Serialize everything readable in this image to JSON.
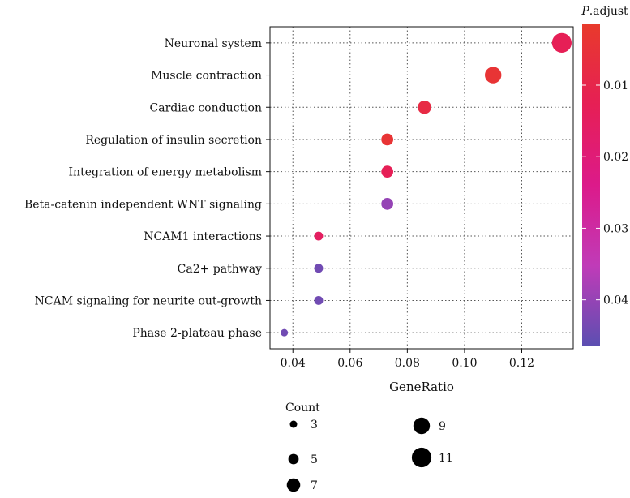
{
  "chart_data": {
    "type": "scatter",
    "xlabel": "GeneRatio",
    "ylabel": "",
    "xlim": [
      0.032,
      0.138
    ],
    "x_ticks": [
      "0.04",
      "0.06",
      "0.08",
      "0.10",
      "0.12"
    ],
    "x_tick_values": [
      0.04,
      0.06,
      0.08,
      0.1,
      0.12
    ],
    "grid": true,
    "categories": [
      "Neuronal system",
      "Muscle contraction",
      "Cardiac conduction",
      "Regulation of insulin secretion",
      "Integration of energy metabolism",
      "Beta-catenin independent WNT signaling",
      "NCAM1 interactions",
      "Ca2+ pathway",
      "NCAM signaling for neurite out-growth",
      "Phase 2-plateau phase"
    ],
    "points": [
      {
        "term": "Neuronal system",
        "gene_ratio": 0.134,
        "count": 11,
        "p_adjust": 0.013
      },
      {
        "term": "Muscle contraction",
        "gene_ratio": 0.11,
        "count": 9,
        "p_adjust": 0.004
      },
      {
        "term": "Cardiac conduction",
        "gene_ratio": 0.086,
        "count": 7,
        "p_adjust": 0.008
      },
      {
        "term": "Regulation of insulin secretion",
        "gene_ratio": 0.073,
        "count": 6,
        "p_adjust": 0.004
      },
      {
        "term": "Integration of energy metabolism",
        "gene_ratio": 0.073,
        "count": 6,
        "p_adjust": 0.013
      },
      {
        "term": "Beta-catenin independent WNT signaling",
        "gene_ratio": 0.073,
        "count": 6,
        "p_adjust": 0.04
      },
      {
        "term": "NCAM1 interactions",
        "gene_ratio": 0.049,
        "count": 4,
        "p_adjust": 0.015
      },
      {
        "term": "Ca2+ pathway",
        "gene_ratio": 0.049,
        "count": 4,
        "p_adjust": 0.044
      },
      {
        "term": "NCAM signaling for neurite out-growth",
        "gene_ratio": 0.049,
        "count": 4,
        "p_adjust": 0.044
      },
      {
        "term": "Phase 2-plateau phase",
        "gene_ratio": 0.037,
        "count": 3,
        "p_adjust": 0.044
      }
    ],
    "color_legend": {
      "title_prefix": "P",
      "title_suffix": ".adjust",
      "ticks": [
        "0.01",
        "0.02",
        "0.03",
        "0.04"
      ],
      "tick_values": [
        0.01,
        0.02,
        0.03,
        0.04
      ],
      "range": [
        0.0015,
        0.0465
      ],
      "colors": [
        "#e83a2c",
        "#e61f55",
        "#dc1a8a",
        "#c03bb8",
        "#5b4fb1"
      ]
    },
    "size_legend": {
      "title": "Count",
      "entries": [
        {
          "label": "3",
          "value": 3
        },
        {
          "label": "5",
          "value": 5
        },
        {
          "label": "7",
          "value": 7
        },
        {
          "label": "9",
          "value": 9
        },
        {
          "label": "11",
          "value": 11
        }
      ]
    }
  }
}
